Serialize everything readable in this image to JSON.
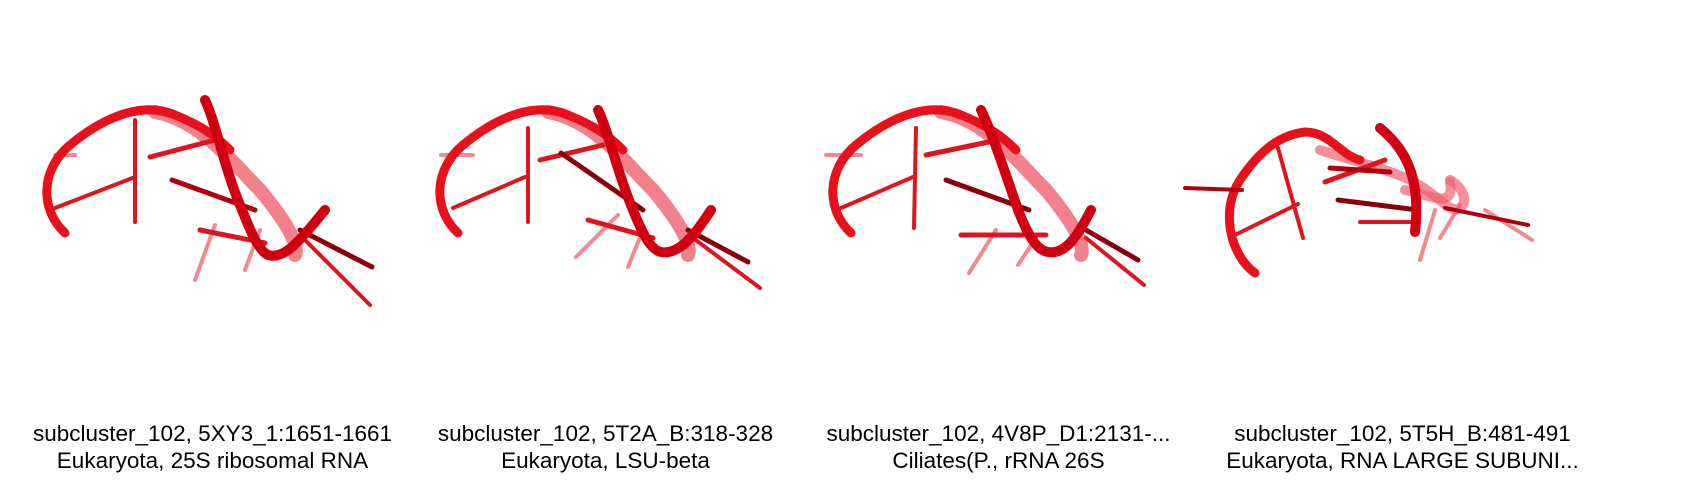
{
  "colors": {
    "backbone": "#e8101a",
    "backbone_light": "#f06070",
    "backbone_dark": "#b00010",
    "stick": "#dd1520",
    "stick_dark": "#8a0008",
    "stick_faded": "#f08a90"
  },
  "panels": [
    {
      "title": "subcluster_102, 5XY3_1:1651-1661",
      "subtitle": "Eukaryota, 25S ribosomal RNA"
    },
    {
      "title": "subcluster_102, 5T2A_B:318-328",
      "subtitle": "Eukaryota, LSU-beta"
    },
    {
      "title": "subcluster_102, 4V8P_D1:2131-...",
      "subtitle": "Ciliates(P., rRNA 26S"
    },
    {
      "title": "subcluster_102, 5T5H_B:481-491",
      "subtitle": "Eukaryota, RNA LARGE SUBUNI..."
    }
  ]
}
